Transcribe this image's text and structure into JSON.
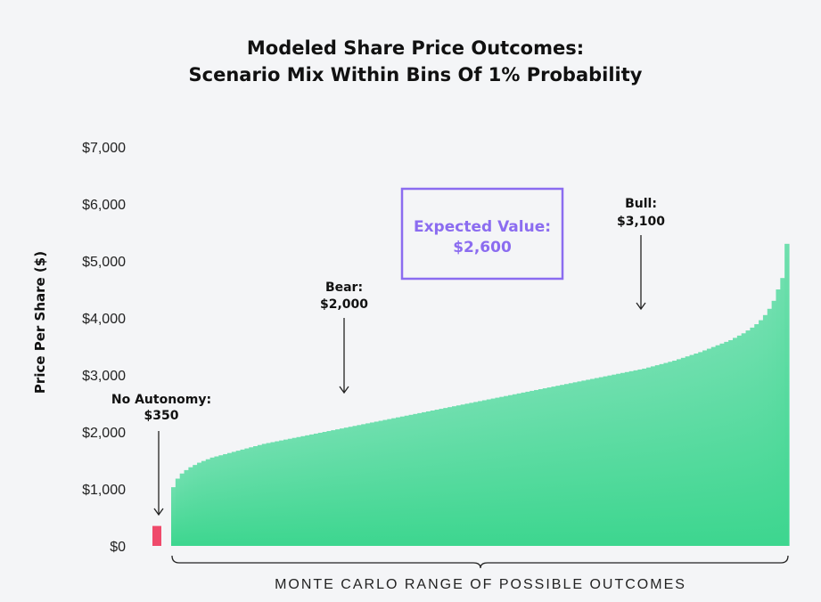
{
  "chart_data": {
    "type": "bar",
    "title": [
      "Modeled Share Price Outcomes:",
      "Scenario Mix Within Bins Of 1% Probability"
    ],
    "xlabel": "MONTE CARLO RANGE OF POSSIBLE OUTCOMES",
    "ylabel": "Price Per Share ($)",
    "ylim": [
      0,
      7000
    ],
    "yticks": [
      0,
      1000,
      2000,
      3000,
      4000,
      5000,
      6000,
      7000
    ],
    "ytick_labels": [
      "$0",
      "$1,000",
      "$2,000",
      "$3,000",
      "$4,000",
      "$5,000",
      "$6,000",
      "$7,000"
    ],
    "grid": false,
    "series": [
      {
        "name": "No Autonomy",
        "color": "#ef4a6b",
        "values": [
          350
        ]
      },
      {
        "name": "Monte Carlo outcomes",
        "color_top": "#6fdfae",
        "color_bottom": "#3dd68f",
        "values": [
          1030,
          1180,
          1270,
          1330,
          1380,
          1420,
          1460,
          1490,
          1520,
          1550,
          1570,
          1590,
          1610,
          1630,
          1650,
          1670,
          1690,
          1710,
          1730,
          1750,
          1770,
          1790,
          1805,
          1820,
          1835,
          1850,
          1865,
          1880,
          1895,
          1910,
          1925,
          1940,
          1955,
          1970,
          1985,
          2000,
          2015,
          2030,
          2045,
          2060,
          2075,
          2090,
          2105,
          2120,
          2135,
          2150,
          2165,
          2180,
          2195,
          2210,
          2225,
          2240,
          2255,
          2270,
          2285,
          2300,
          2315,
          2330,
          2345,
          2360,
          2375,
          2390,
          2405,
          2420,
          2435,
          2450,
          2465,
          2480,
          2495,
          2510,
          2525,
          2540,
          2555,
          2570,
          2585,
          2600,
          2615,
          2630,
          2645,
          2660,
          2675,
          2690,
          2705,
          2720,
          2735,
          2750,
          2765,
          2780,
          2795,
          2810,
          2825,
          2840,
          2855,
          2870,
          2885,
          2900,
          2915,
          2930,
          2945,
          2960,
          2975,
          2990,
          3005,
          3020,
          3035,
          3050,
          3065,
          3080,
          3095,
          3110,
          3130,
          3150,
          3170,
          3190,
          3210,
          3230,
          3250,
          3275,
          3300,
          3325,
          3350,
          3375,
          3400,
          3430,
          3460,
          3490,
          3520,
          3550,
          3580,
          3610,
          3650,
          3690,
          3730,
          3780,
          3830,
          3890,
          3960,
          4050,
          4160,
          4300,
          4500,
          4700,
          5300
        ]
      }
    ],
    "annotations": [
      {
        "label": "No Autonomy:",
        "value_label": "$350"
      },
      {
        "label": "Bear:",
        "value_label": "$2,000"
      },
      {
        "label": "Bull:",
        "value_label": "$3,100"
      }
    ],
    "expected_value": {
      "label": "Expected Value:",
      "value_label": "$2,600",
      "color": "#8b6cf0"
    }
  }
}
